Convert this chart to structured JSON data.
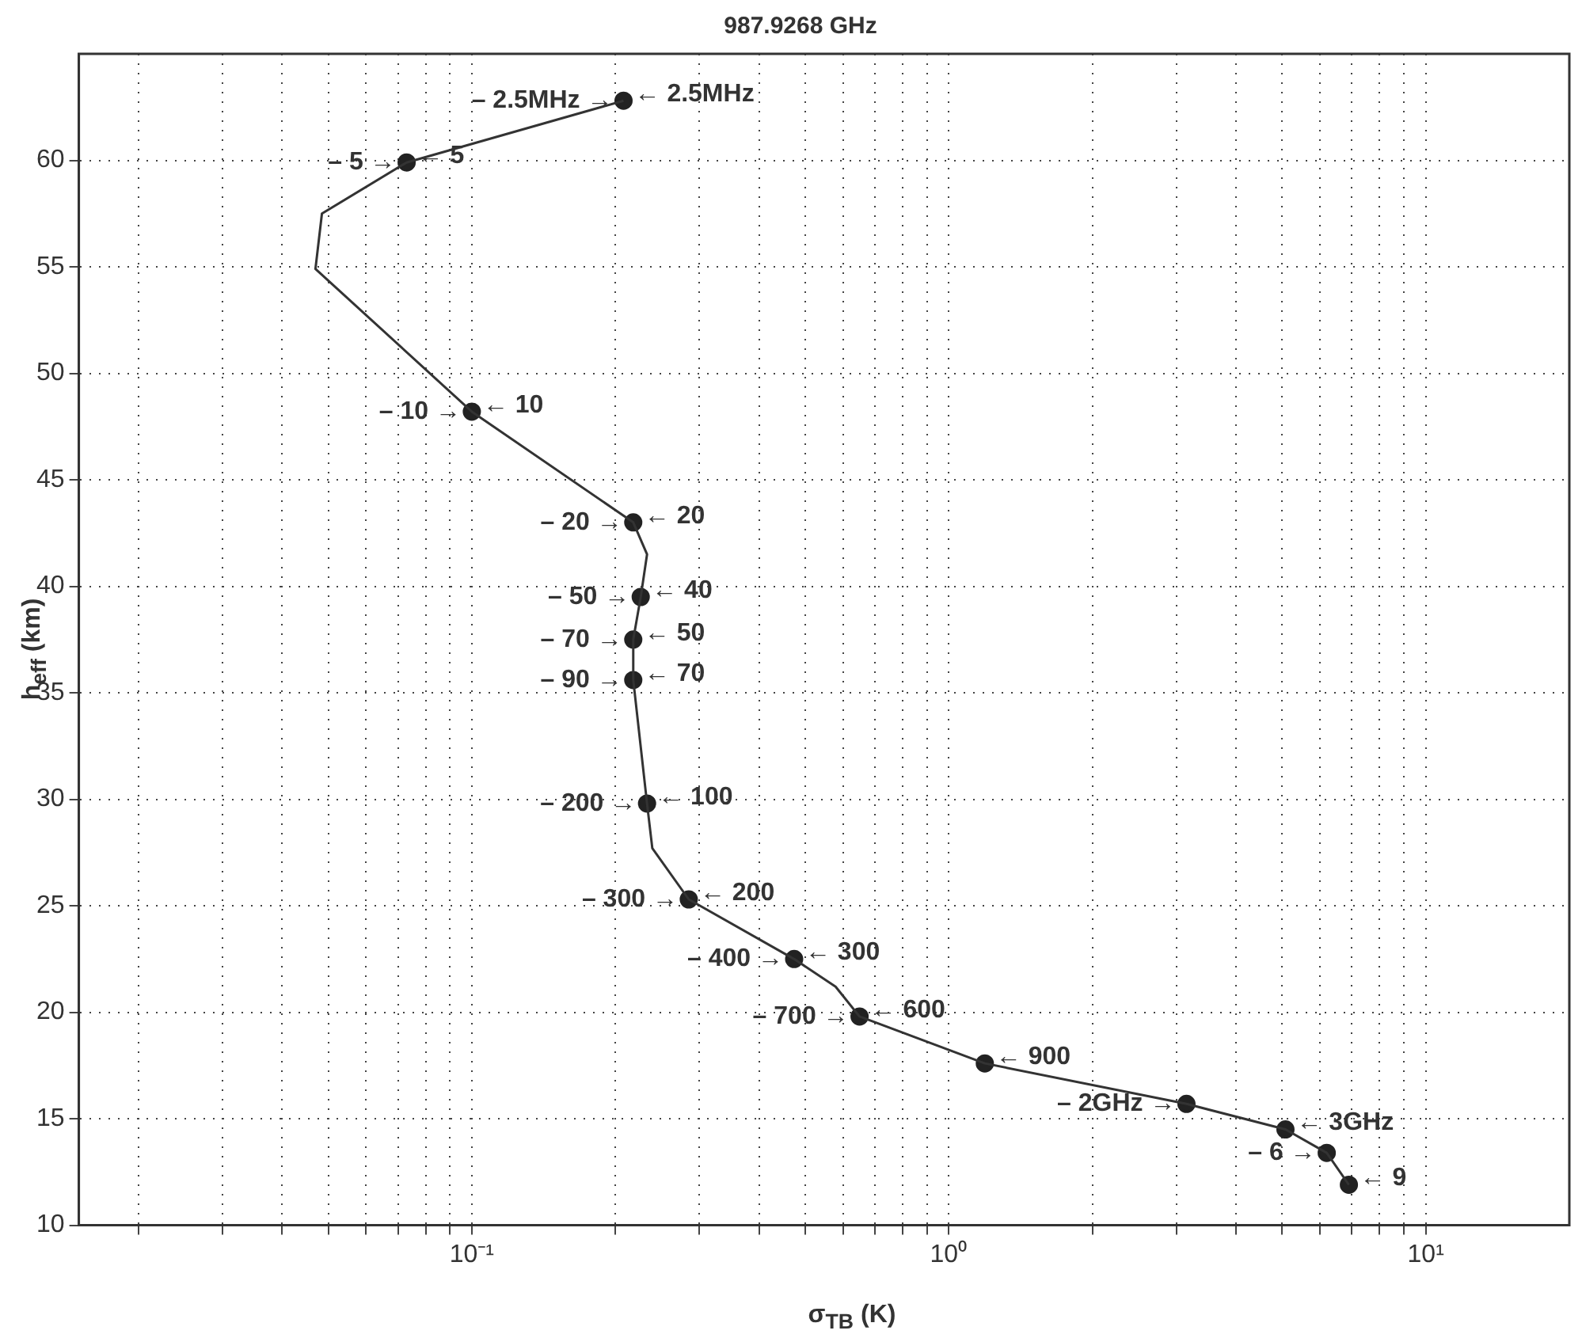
{
  "chart_data": {
    "type": "line",
    "title": "987.9268 GHz",
    "xlabel": "σ$_{TB}$ (K)",
    "ylabel": "h$_{eff}$ (km)",
    "log": "x",
    "grid": true,
    "legend": false,
    "xlim": [
      0.015,
      20
    ],
    "ylim": [
      10,
      65
    ],
    "xticks": [
      {
        "value": 0.02,
        "label": null
      },
      {
        "value": 0.03,
        "label": null
      },
      {
        "value": 0.04,
        "label": null
      },
      {
        "value": 0.05,
        "label": null
      },
      {
        "value": 0.06,
        "label": null
      },
      {
        "value": 0.07,
        "label": null
      },
      {
        "value": 0.08,
        "label": null
      },
      {
        "value": 0.09,
        "label": null
      },
      {
        "value": 0.1,
        "label": "10⁻¹"
      },
      {
        "value": 0.2,
        "label": null
      },
      {
        "value": 0.3,
        "label": null
      },
      {
        "value": 0.4,
        "label": null
      },
      {
        "value": 0.5,
        "label": null
      },
      {
        "value": 0.6,
        "label": null
      },
      {
        "value": 0.7,
        "label": null
      },
      {
        "value": 0.8,
        "label": null
      },
      {
        "value": 0.9,
        "label": null
      },
      {
        "value": 1,
        "label": "10⁰"
      },
      {
        "value": 2,
        "label": null
      },
      {
        "value": 3,
        "label": null
      },
      {
        "value": 4,
        "label": null
      },
      {
        "value": 5,
        "label": null
      },
      {
        "value": 6,
        "label": null
      },
      {
        "value": 7,
        "label": null
      },
      {
        "value": 8,
        "label": null
      },
      {
        "value": 9,
        "label": null
      },
      {
        "value": 10,
        "label": "10¹"
      }
    ],
    "yticks": [
      10,
      15,
      20,
      25,
      30,
      35,
      40,
      45,
      50,
      55,
      60
    ],
    "series": [
      {
        "type": "line",
        "marker": "none",
        "color": "#333333",
        "x": [
          0.208,
          0.073,
          0.0485,
          0.047,
          0.1,
          0.218,
          0.233,
          0.226,
          0.218,
          0.218,
          0.233,
          0.239,
          0.285,
          0.474,
          0.579,
          0.65,
          1.19,
          3.15,
          5.08,
          6.2,
          6.9
        ],
        "values": [
          62.8,
          59.9,
          57.5,
          54.9,
          48.2,
          43.0,
          41.5,
          39.5,
          37.5,
          35.6,
          29.8,
          27.7,
          25.3,
          22.5,
          21.2,
          19.8,
          17.6,
          15.7,
          14.5,
          13.4,
          11.9
        ]
      },
      {
        "type": "scatter",
        "marker": "circle",
        "color": "#222222",
        "x": [
          0.208,
          0.073,
          0.1,
          0.218,
          0.226,
          0.218,
          0.218,
          0.233,
          0.285,
          0.474,
          0.65,
          1.19,
          3.15,
          5.08,
          6.2,
          6.9
        ],
        "values": [
          62.8,
          59.9,
          48.2,
          43.0,
          39.5,
          37.5,
          35.6,
          29.8,
          25.3,
          22.5,
          19.8,
          17.6,
          15.7,
          14.5,
          13.4,
          11.9
        ]
      }
    ],
    "annotations": [
      {
        "text": "– 2.5MHz →",
        "x": 0.208,
        "y": 62.8
      },
      {
        "text": "← 2.5MHz",
        "x": 0.208,
        "y": 62.8
      },
      {
        "text": "– 5 →",
        "x": 0.073,
        "y": 59.9
      },
      {
        "text": "← 5",
        "x": 0.073,
        "y": 59.9
      },
      {
        "text": "– 10 →",
        "x": 0.1,
        "y": 48.2
      },
      {
        "text": "← 10",
        "x": 0.1,
        "y": 48.2
      },
      {
        "text": "– 20 →",
        "x": 0.218,
        "y": 43.0
      },
      {
        "text": "← 20",
        "x": 0.218,
        "y": 43.0
      },
      {
        "text": "– 50 →",
        "x": 0.226,
        "y": 39.5
      },
      {
        "text": "← 40",
        "x": 0.226,
        "y": 39.5
      },
      {
        "text": "– 70 →",
        "x": 0.218,
        "y": 37.5
      },
      {
        "text": "← 50",
        "x": 0.218,
        "y": 37.5
      },
      {
        "text": "– 90 →",
        "x": 0.218,
        "y": 35.6
      },
      {
        "text": "← 70",
        "x": 0.218,
        "y": 35.6
      },
      {
        "text": "– 200 →",
        "x": 0.233,
        "y": 29.8
      },
      {
        "text": "← 100",
        "x": 0.233,
        "y": 29.8
      },
      {
        "text": "– 300 →",
        "x": 0.285,
        "y": 25.3
      },
      {
        "text": "← 200",
        "x": 0.285,
        "y": 25.3
      },
      {
        "text": "– 400 →",
        "x": 0.474,
        "y": 22.5
      },
      {
        "text": "← 300",
        "x": 0.474,
        "y": 22.5
      },
      {
        "text": "– 700 →",
        "x": 0.65,
        "y": 19.8
      },
      {
        "text": "← 600",
        "x": 0.65,
        "y": 19.8
      },
      {
        "text": "← 900",
        "x": 1.19,
        "y": 17.6
      },
      {
        "text": "– 2GHz →",
        "x": 3.15,
        "y": 15.7
      },
      {
        "text": "← 3GHz",
        "x": 5.08,
        "y": 14.5
      },
      {
        "text": "– 6 →",
        "x": 6.2,
        "y": 13.4
      },
      {
        "text": "← 9",
        "x": 6.9,
        "y": 11.9
      }
    ]
  }
}
